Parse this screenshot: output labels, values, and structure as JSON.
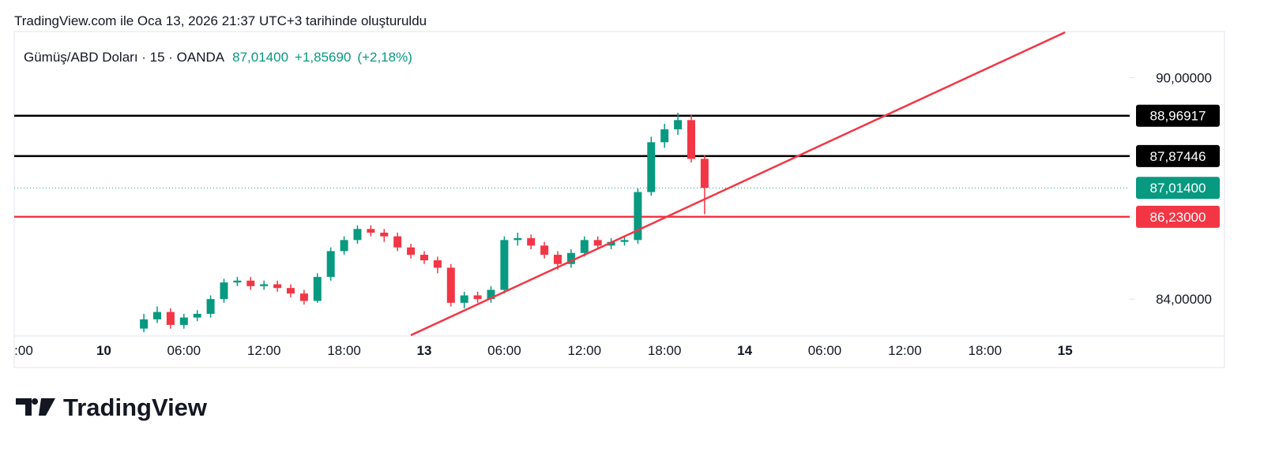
{
  "header": {
    "caption": "TradingView.com ile Oca 13, 2026 21:37 UTC+3 tarihinde oluşturuldu"
  },
  "chart_data": {
    "type": "candlestick",
    "legend": {
      "symbol": "Gümüş/ABD Doları · 15 · OANDA",
      "price": "87,01400",
      "change": "+1,85690",
      "change_pct": "(+2,18%)",
      "color": "#089981"
    },
    "categories": [
      ":00",
      null,
      null,
      null,
      null,
      null,
      "10",
      null,
      null,
      null,
      null,
      null,
      "06:00",
      null,
      null,
      null,
      null,
      null,
      "12:00",
      null,
      null,
      null,
      null,
      null,
      "18:00",
      null,
      null,
      null,
      null,
      null,
      "13",
      null,
      null,
      null,
      null,
      null,
      "06:00",
      null,
      null,
      null,
      null,
      null,
      "12:00",
      null,
      null,
      null,
      null,
      null,
      "18:00",
      null,
      null,
      null,
      null,
      null,
      "14",
      null,
      null,
      null,
      null,
      null,
      "06:00",
      null,
      null,
      null,
      null,
      null,
      "12:00",
      null,
      null,
      null,
      null,
      null,
      "18:00",
      null,
      null,
      null,
      null,
      null,
      "15",
      null,
      null,
      null,
      null,
      null,
      null
    ],
    "bold_categories": [
      "10",
      "13",
      "14",
      "15"
    ],
    "open": [
      null,
      null,
      null,
      null,
      null,
      null,
      null,
      null,
      null,
      83.2,
      83.45,
      83.65,
      83.3,
      83.5,
      83.6,
      84.0,
      84.45,
      84.5,
      84.35,
      84.4,
      84.3,
      84.15,
      83.95,
      84.6,
      85.3,
      85.6,
      85.9,
      85.8,
      85.7,
      85.4,
      85.2,
      85.05,
      84.85,
      83.9,
      84.1,
      84.0,
      84.25,
      85.6,
      85.65,
      85.45,
      85.2,
      84.95,
      85.25,
      85.6,
      85.45,
      85.55,
      85.6,
      86.9,
      88.25,
      88.6,
      88.85,
      87.8,
      null,
      null,
      null,
      null,
      null,
      null,
      null,
      null,
      null,
      null,
      null,
      null,
      null,
      null,
      null,
      null,
      null,
      null,
      null,
      null,
      null,
      null,
      null,
      null,
      null,
      null,
      null,
      null,
      null,
      null,
      null,
      null,
      null
    ],
    "high": [
      null,
      null,
      null,
      null,
      null,
      null,
      null,
      null,
      null,
      83.6,
      83.8,
      83.75,
      83.6,
      83.7,
      84.1,
      84.55,
      84.6,
      84.6,
      84.5,
      84.5,
      84.4,
      84.25,
      84.7,
      85.4,
      85.7,
      86.0,
      86.0,
      85.9,
      85.8,
      85.5,
      85.3,
      85.15,
      84.95,
      84.2,
      84.2,
      84.35,
      85.7,
      85.8,
      85.75,
      85.55,
      85.3,
      85.35,
      85.7,
      85.7,
      85.65,
      85.7,
      87.0,
      88.4,
      88.75,
      89.05,
      89.0,
      87.9,
      null,
      null,
      null,
      null,
      null,
      null,
      null,
      null,
      null,
      null,
      null,
      null,
      null,
      null,
      null,
      null,
      null,
      null,
      null,
      null,
      null,
      null,
      null,
      null,
      null,
      null,
      null,
      null,
      null,
      null,
      null,
      null,
      null
    ],
    "low": [
      null,
      null,
      null,
      null,
      null,
      null,
      null,
      null,
      null,
      83.1,
      83.35,
      83.2,
      83.2,
      83.4,
      83.5,
      83.9,
      84.35,
      84.25,
      84.25,
      84.2,
      84.05,
      83.85,
      83.9,
      84.5,
      85.2,
      85.5,
      85.7,
      85.55,
      85.3,
      85.1,
      84.95,
      84.7,
      83.8,
      83.75,
      83.9,
      83.9,
      84.15,
      85.45,
      85.35,
      85.1,
      84.8,
      84.85,
      85.15,
      85.35,
      85.35,
      85.45,
      85.5,
      86.8,
      88.1,
      88.45,
      87.7,
      86.3,
      null,
      null,
      null,
      null,
      null,
      null,
      null,
      null,
      null,
      null,
      null,
      null,
      null,
      null,
      null,
      null,
      null,
      null,
      null,
      null,
      null,
      null,
      null,
      null,
      null,
      null,
      null,
      null,
      null,
      null,
      null,
      null,
      null
    ],
    "close": [
      null,
      null,
      null,
      null,
      null,
      null,
      null,
      null,
      null,
      83.45,
      83.65,
      83.3,
      83.5,
      83.6,
      84.0,
      84.45,
      84.5,
      84.35,
      84.4,
      84.3,
      84.15,
      83.95,
      84.6,
      85.3,
      85.6,
      85.9,
      85.8,
      85.7,
      85.4,
      85.2,
      85.05,
      84.85,
      83.9,
      84.1,
      84.0,
      84.25,
      85.6,
      85.65,
      85.45,
      85.2,
      84.95,
      85.25,
      85.6,
      85.45,
      85.55,
      85.6,
      86.9,
      88.25,
      88.6,
      88.85,
      87.8,
      87.014,
      null,
      null,
      null,
      null,
      null,
      null,
      null,
      null,
      null,
      null,
      null,
      null,
      null,
      null,
      null,
      null,
      null,
      null,
      null,
      null,
      null,
      null,
      null,
      null,
      null,
      null,
      null,
      null,
      null,
      null,
      null,
      null,
      null
    ],
    "up_color": "#089981",
    "down_color": "#f23645",
    "ylim": [
      83,
      91.25
    ],
    "yticks": [
      {
        "value": 84,
        "label": "84,00000"
      },
      {
        "value": 90,
        "label": "90,00000"
      }
    ],
    "price_lines": [
      {
        "value": 88.96917,
        "label": "88,96917",
        "color": "#000000"
      },
      {
        "value": 87.87446,
        "label": "87,87446",
        "color": "#000000"
      },
      {
        "value": 86.23,
        "label": "86,23000",
        "color": "#f23645"
      }
    ],
    "last_price": {
      "value": 87.014,
      "label": "87,01400",
      "color": "#089981"
    },
    "trendline": {
      "x": [
        29,
        78
      ],
      "y": [
        83.02,
        91.23
      ],
      "color": "#f23645"
    }
  },
  "footer": {
    "logo": "TradingView"
  }
}
